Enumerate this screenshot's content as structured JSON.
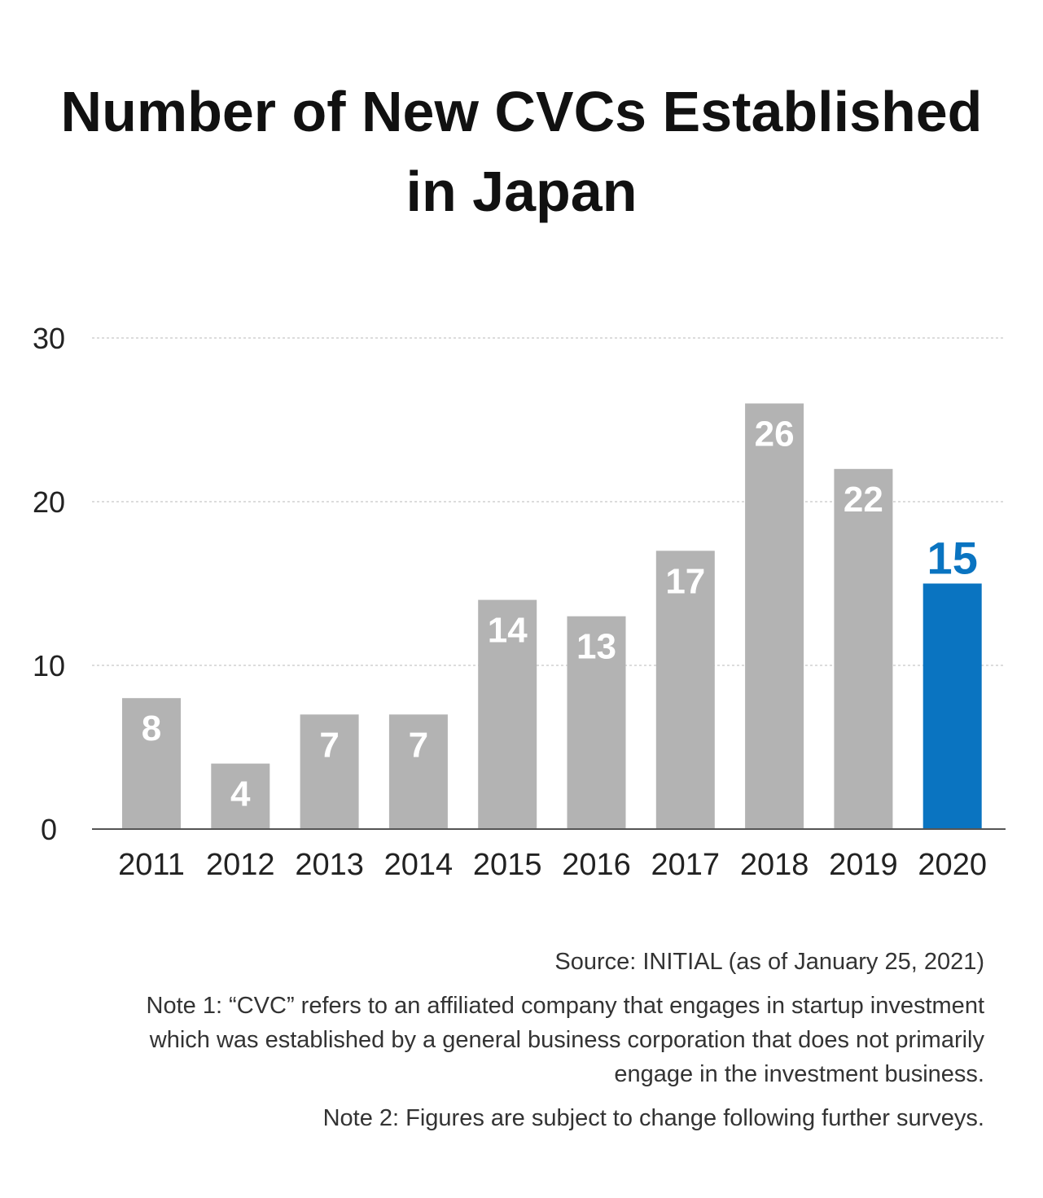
{
  "title": {
    "line1": "Number of New CVCs Established",
    "line2": "in Japan"
  },
  "chart_data": {
    "type": "bar",
    "title": "Number of New CVCs Established in Japan",
    "categories": [
      "2011",
      "2012",
      "2013",
      "2014",
      "2015",
      "2016",
      "2017",
      "2018",
      "2019",
      "2020"
    ],
    "values": [
      8,
      4,
      7,
      7,
      14,
      13,
      17,
      26,
      22,
      15
    ],
    "ylim": [
      0,
      30
    ],
    "yticks": [
      0,
      10,
      20,
      30
    ],
    "grid": true,
    "xlabel": "",
    "ylabel": "",
    "highlight_index": 9,
    "colors": {
      "bar": "#b3b3b3",
      "highlight": "#0a74c1",
      "label": "#ffffff",
      "grid": "#c8c8c8",
      "axis": "#555555",
      "tick": "#222222"
    }
  },
  "notes": {
    "source": "Source: INITIAL (as of January 25, 2021)",
    "note1": "Note 1: “CVC” refers to an affiliated company that engages in startup investment which was established by a general business corporation that does not primarily engage in the investment business.",
    "note2": "Note 2: Figures are subject to change following further surveys."
  }
}
